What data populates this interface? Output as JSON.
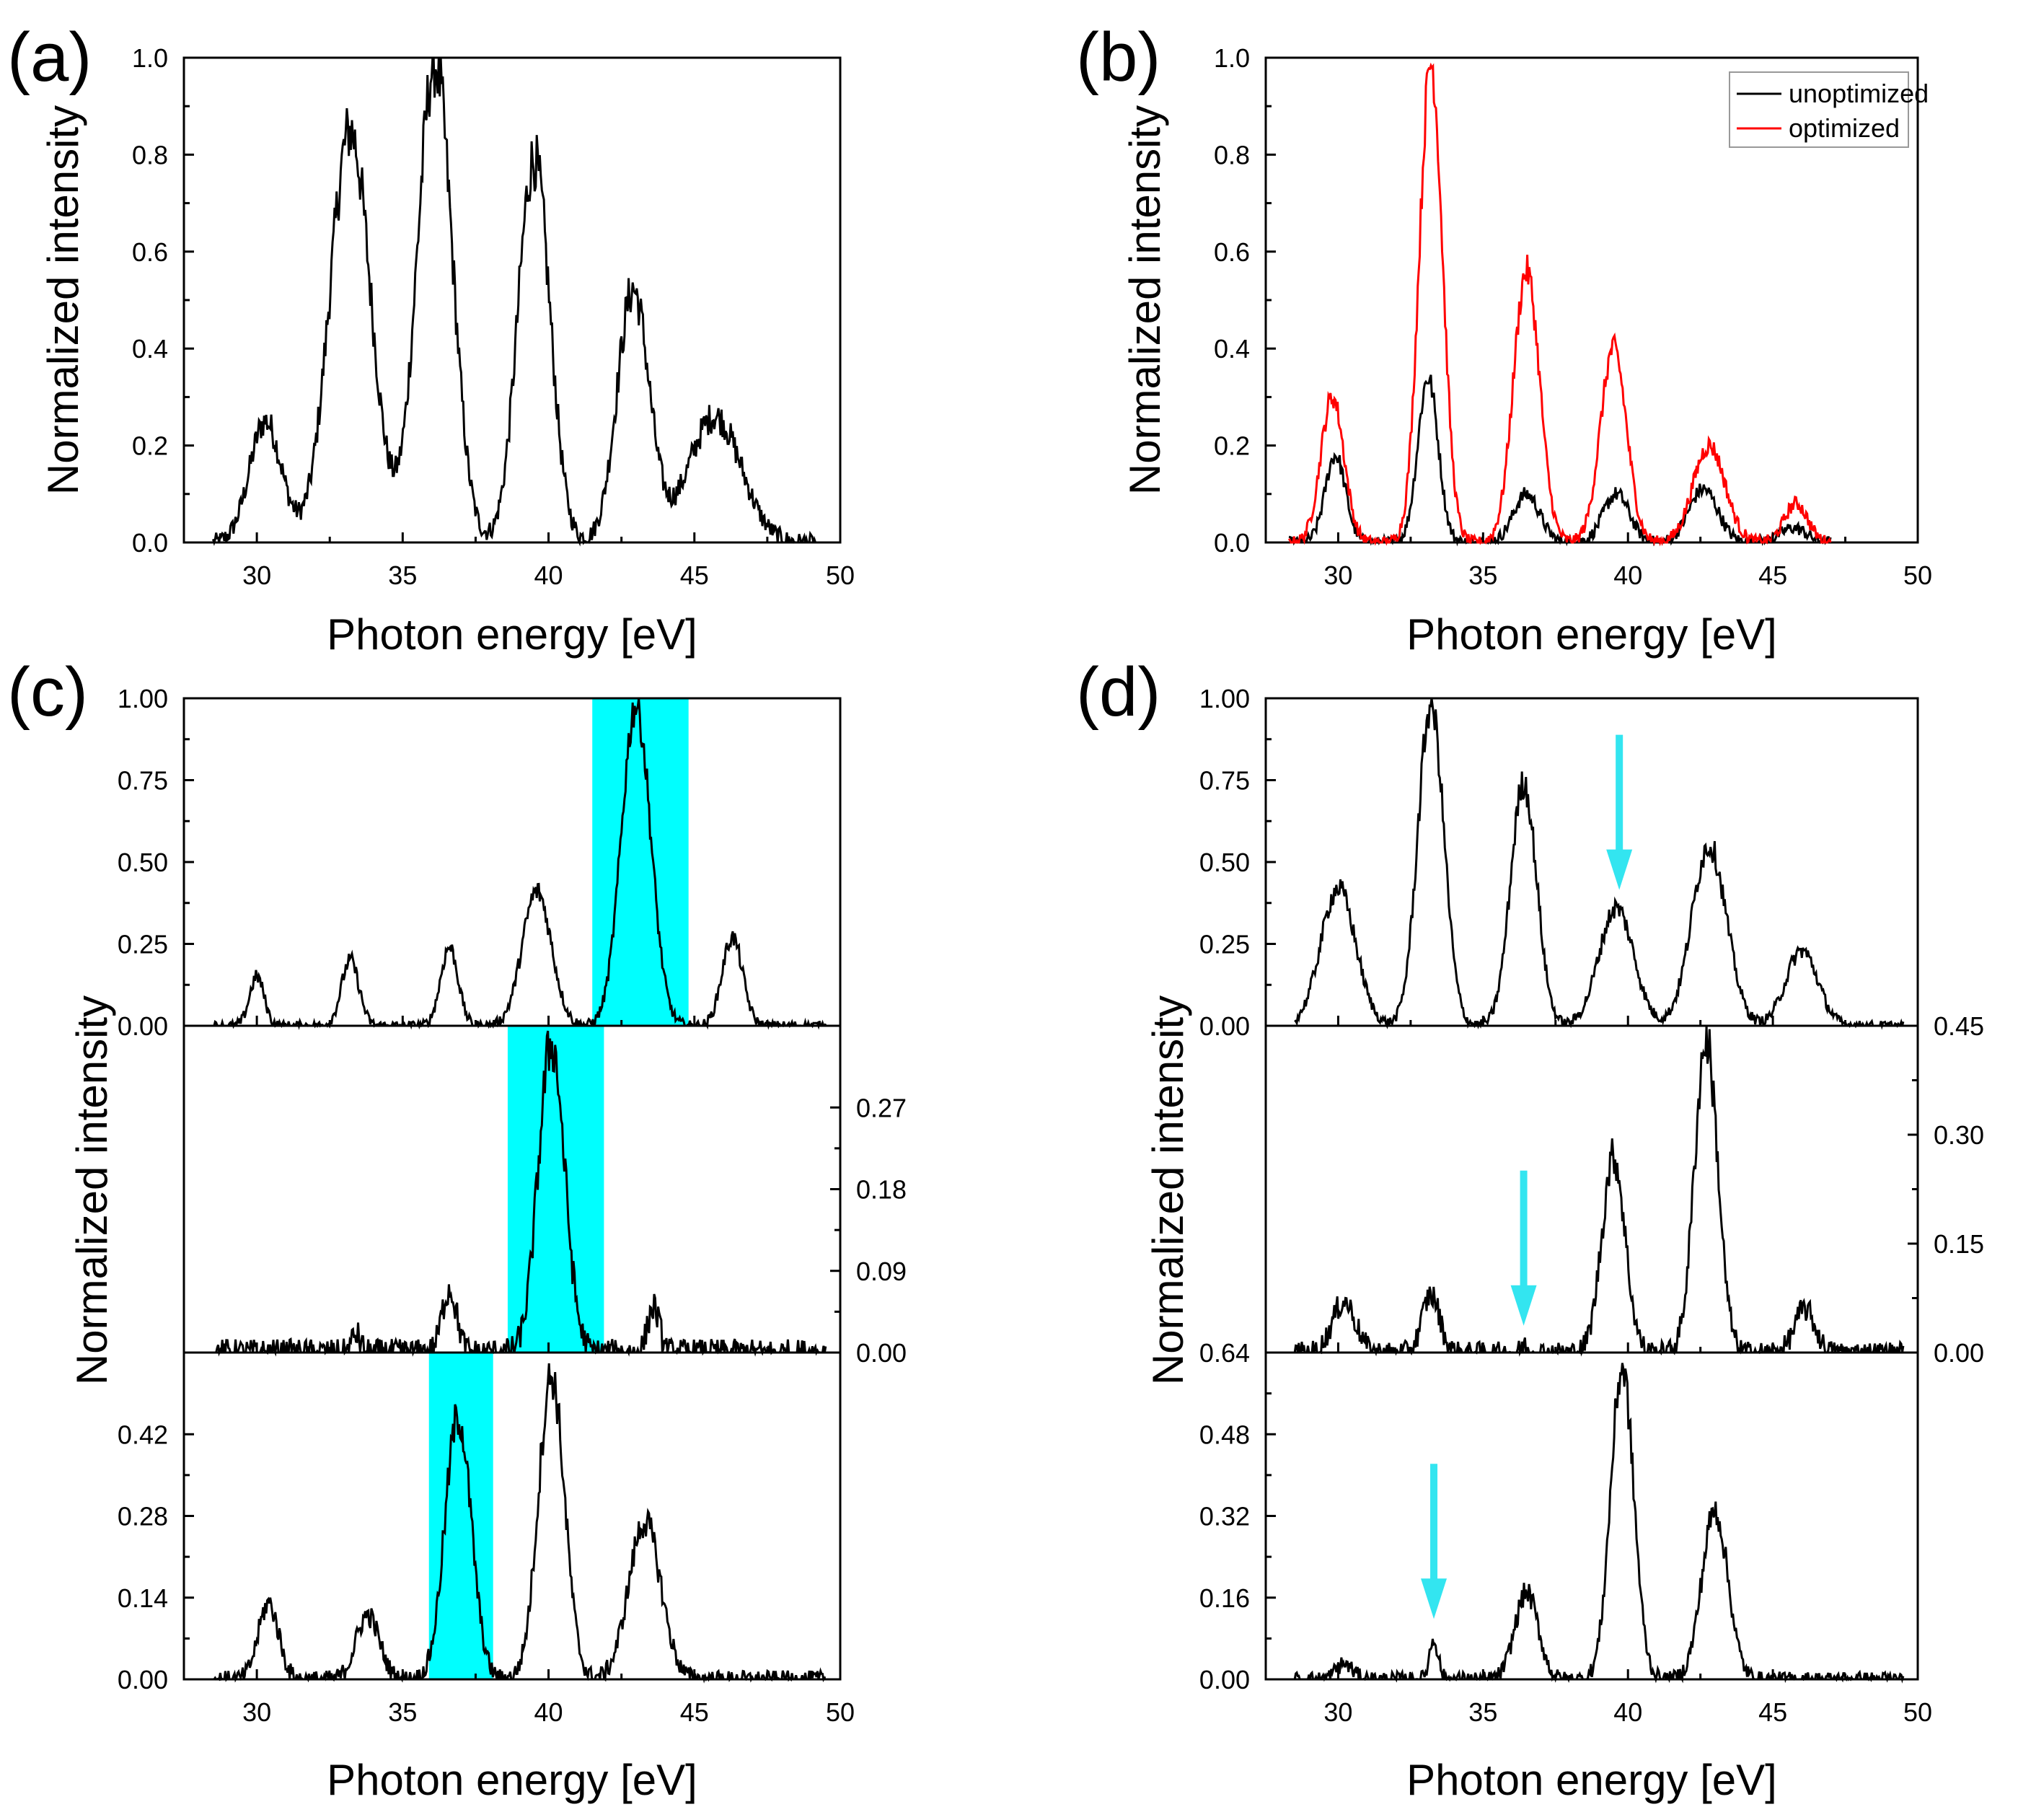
{
  "figure": {
    "panel_labels": [
      "(a)",
      "(b)",
      "(c)",
      "(d)"
    ],
    "x_axis_title": "Photon energy [eV]",
    "y_axis_title": "Normalized intensity"
  },
  "colors": {
    "black_line": "#000000",
    "red_line": "#ff0000",
    "highlight": "#00ffff",
    "arrow": "#33e5f0"
  },
  "chart_data": [
    {
      "id": "a",
      "type": "line",
      "title": "",
      "xlabel": "Photon energy [eV]",
      "ylabel": "Normalized intensity",
      "xlim": [
        27.5,
        50
      ],
      "ylim": [
        0,
        1.0
      ],
      "xticks": [
        "30",
        "35",
        "40",
        "45",
        "50"
      ],
      "yticks": [
        "0.0",
        "0.2",
        "0.4",
        "0.6",
        "0.8",
        "1.0"
      ],
      "series": [
        {
          "name": "spectrum",
          "color": "#000000",
          "peaks": [
            [
              30.3,
              0.25,
              0.55
            ],
            [
              33.2,
              0.85,
              0.7
            ],
            [
              36.1,
              0.99,
              0.6
            ],
            [
              39.5,
              0.79,
              0.55
            ],
            [
              42.9,
              0.52,
              0.55
            ],
            [
              45.7,
              0.26,
              0.9
            ]
          ],
          "x_start": 28.5,
          "x_end": 49.2
        }
      ]
    },
    {
      "id": "b",
      "type": "line",
      "title": "",
      "xlabel": "Photon energy [eV]",
      "ylabel": "Normalized intensity",
      "xlim": [
        27.5,
        50
      ],
      "ylim": [
        0,
        1.0
      ],
      "xticks": [
        "30",
        "35",
        "40",
        "45",
        "50"
      ],
      "yticks": [
        "0.0",
        "0.2",
        "0.4",
        "0.6",
        "0.8",
        "1.0"
      ],
      "legend": {
        "position": "top-right",
        "entries": [
          "unoptimized",
          "optimized"
        ]
      },
      "series": [
        {
          "name": "unoptimized",
          "color": "#000000",
          "peaks": [
            [
              29.9,
              0.18,
              0.35
            ],
            [
              33.1,
              0.34,
              0.35
            ],
            [
              36.5,
              0.1,
              0.45
            ],
            [
              39.6,
              0.1,
              0.45
            ],
            [
              42.6,
              0.11,
              0.5
            ],
            [
              45.7,
              0.03,
              0.45
            ]
          ],
          "x_start": 28.3,
          "x_end": 47.0
        },
        {
          "name": "optimized",
          "color": "#ff0000",
          "peaks": [
            [
              29.8,
              0.3,
              0.4
            ],
            [
              33.2,
              0.99,
              0.4
            ],
            [
              36.5,
              0.56,
              0.45
            ],
            [
              39.5,
              0.4,
              0.45
            ],
            [
              42.8,
              0.2,
              0.55
            ],
            [
              45.8,
              0.08,
              0.4
            ]
          ],
          "x_start": 28.3,
          "x_end": 47.0
        }
      ]
    },
    {
      "id": "c",
      "type": "line",
      "xlabel": "Photon energy [eV]",
      "ylabel": "Normalized intensity",
      "xlim": [
        27.5,
        50
      ],
      "xticks": [
        "30",
        "35",
        "40",
        "45",
        "50"
      ],
      "subplots": [
        {
          "ylim": [
            0,
            1.0
          ],
          "yticks": [
            "0.00",
            "0.25",
            "0.50",
            "0.75",
            "1.00"
          ],
          "tick_side": "left",
          "highlight": [
            41.5,
            44.8
          ],
          "peaks": [
            [
              30.0,
              0.15,
              0.25
            ],
            [
              33.2,
              0.2,
              0.3
            ],
            [
              36.6,
              0.24,
              0.3
            ],
            [
              39.6,
              0.41,
              0.5
            ],
            [
              43.0,
              0.98,
              0.5
            ],
            [
              46.3,
              0.27,
              0.35
            ]
          ]
        },
        {
          "ylim": [
            0,
            0.36
          ],
          "yticks": [
            "0.00",
            "0.09",
            "0.18",
            "0.27"
          ],
          "tick_side": "right",
          "highlight": [
            38.6,
            41.9
          ],
          "peaks": [
            [
              33.4,
              0.02,
              0.15
            ],
            [
              36.6,
              0.07,
              0.25
            ],
            [
              40.1,
              0.34,
              0.45
            ],
            [
              43.6,
              0.05,
              0.2
            ]
          ]
        },
        {
          "ylim": [
            0,
            0.56
          ],
          "yticks": [
            "0.00",
            "0.14",
            "0.28",
            "0.42"
          ],
          "tick_side": "left",
          "highlight": [
            35.9,
            38.1
          ],
          "peaks": [
            [
              30.4,
              0.13,
              0.35
            ],
            [
              33.8,
              0.11,
              0.4
            ],
            [
              36.9,
              0.45,
              0.45
            ],
            [
              40.1,
              0.52,
              0.45
            ],
            [
              43.3,
              0.27,
              0.55
            ]
          ]
        }
      ]
    },
    {
      "id": "d",
      "type": "line",
      "xlabel": "Photon energy [eV]",
      "ylabel": "Normalized intensity",
      "xlim": [
        27.5,
        50
      ],
      "xticks": [
        "30",
        "35",
        "40",
        "45",
        "50"
      ],
      "subplots": [
        {
          "ylim": [
            0,
            1.0
          ],
          "yticks": [
            "0.00",
            "0.25",
            "0.50",
            "0.75",
            "1.00"
          ],
          "tick_side": "left",
          "arrow_x": 39.7,
          "peaks": [
            [
              30.0,
              0.42,
              0.6
            ],
            [
              33.2,
              0.98,
              0.45
            ],
            [
              36.4,
              0.74,
              0.45
            ],
            [
              39.6,
              0.36,
              0.6
            ],
            [
              42.8,
              0.55,
              0.6
            ],
            [
              46.0,
              0.23,
              0.55
            ]
          ]
        },
        {
          "ylim": [
            0,
            0.45
          ],
          "yticks": [
            "0.00",
            "0.15",
            "0.30",
            "0.45"
          ],
          "tick_side": "right",
          "arrow_x": 36.4,
          "peaks": [
            [
              30.2,
              0.07,
              0.4
            ],
            [
              33.2,
              0.08,
              0.3
            ],
            [
              36.4,
              0.01,
              0.1
            ],
            [
              39.5,
              0.27,
              0.4
            ],
            [
              42.7,
              0.43,
              0.4
            ],
            [
              46.1,
              0.06,
              0.35
            ]
          ]
        },
        {
          "ylim": [
            0,
            0.64
          ],
          "yticks": [
            "0.00",
            "0.16",
            "0.32",
            "0.48",
            "0.64"
          ],
          "tick_side": "left",
          "arrow_x": 33.3,
          "peaks": [
            [
              30.2,
              0.03,
              0.3
            ],
            [
              33.3,
              0.08,
              0.15
            ],
            [
              36.5,
              0.17,
              0.4
            ],
            [
              39.8,
              0.61,
              0.4
            ],
            [
              43.0,
              0.33,
              0.45
            ]
          ]
        }
      ]
    }
  ]
}
